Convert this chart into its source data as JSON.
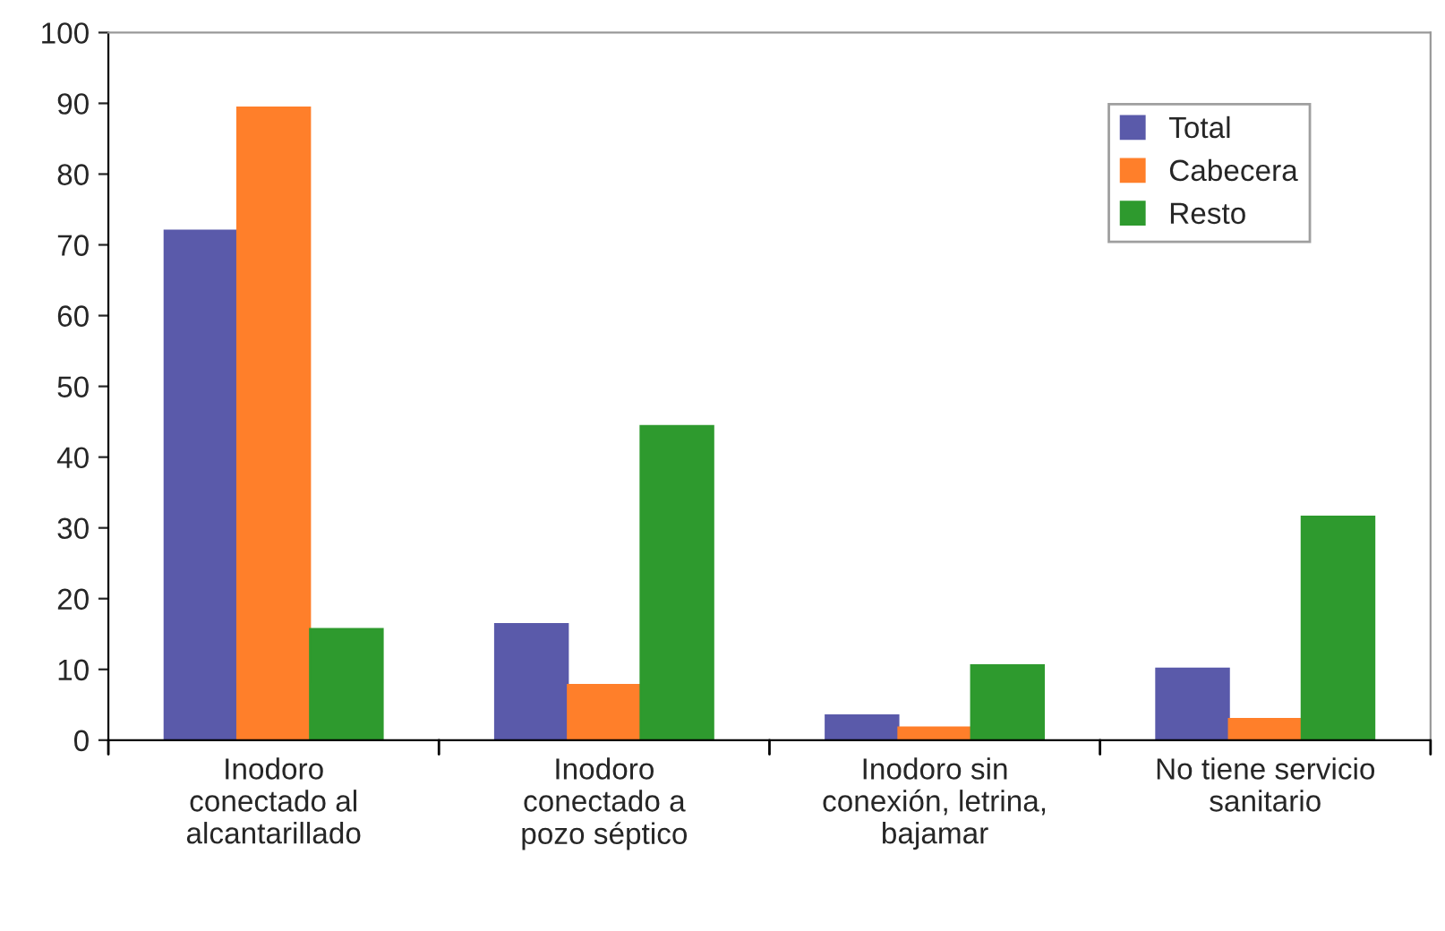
{
  "chart_data": {
    "type": "bar",
    "categories": [
      "Inodoro\nconectado al\nalcantarillado",
      "Inodoro\nconectado a\npozo séptico",
      "Inodoro sin\nconexión, letrina,\nbajamar",
      "No tiene servicio\nsanitario"
    ],
    "series": [
      {
        "name": "Total",
        "color": "#5a5aaa",
        "values": [
          72,
          16.4,
          3.5,
          10.1
        ]
      },
      {
        "name": "Cabecera",
        "color": "#ff7f2a",
        "values": [
          89.4,
          7.8,
          1.8,
          3
        ]
      },
      {
        "name": "Resto",
        "color": "#2e9a2e",
        "values": [
          15.7,
          44.4,
          10.6,
          31.6
        ]
      }
    ],
    "ylim": [
      0,
      100
    ],
    "yticks": [
      0,
      10,
      20,
      30,
      40,
      50,
      60,
      70,
      80,
      90,
      100
    ],
    "grid": false,
    "legend": "top right"
  }
}
